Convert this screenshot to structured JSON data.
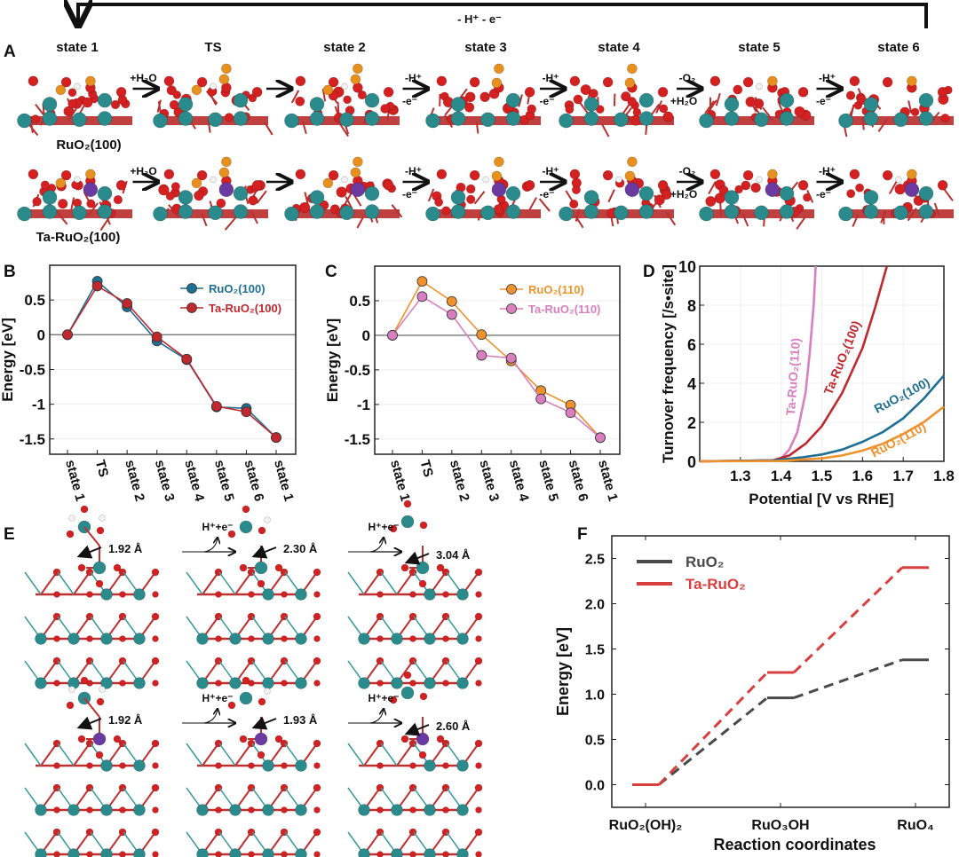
{
  "panel_labels": {
    "a": "A",
    "b": "B",
    "c": "C",
    "d": "D",
    "e": "E",
    "f": "F"
  },
  "panel_a": {
    "cycle_label": "- H⁺ - e⁻",
    "states": [
      "state 1",
      "TS",
      "state 2",
      "state 3",
      "state 4",
      "state 5",
      "state 6"
    ],
    "row_labels": [
      "RuO₂(100)",
      "Ta-RuO₂(100)"
    ],
    "steps": [
      {
        "top": "+H₂O",
        "bottom": ""
      },
      {
        "top": "",
        "bottom": ""
      },
      {
        "top": "-H⁺",
        "bottom": "-e⁻"
      },
      {
        "top": "-H⁺",
        "bottom": "-e⁻"
      },
      {
        "top": "-O₂",
        "bottom": "+H₂O"
      },
      {
        "top": "-H⁺",
        "bottom": "-e⁻"
      }
    ]
  },
  "panel_e": {
    "step_label": "H⁺+e⁻",
    "distances": [
      [
        "1.92 Å",
        "2.30 Å",
        "3.04 Å"
      ],
      [
        "1.92 Å",
        "1.93 Å",
        "2.60 Å"
      ]
    ]
  },
  "colors": {
    "ru": "#2a8a8c",
    "o": "#d42020",
    "h": "#f2f2f2",
    "adsorbate": "#e8901e",
    "ta": "#6a3aa0"
  },
  "chart_data": [
    {
      "type": "line",
      "panel": "B",
      "categories": [
        "state 1",
        "TS",
        "state 2",
        "state 3",
        "state 4",
        "state 5",
        "state 6",
        "state 1"
      ],
      "ylabel": "Energy [eV]",
      "ylim": [
        -1.72,
        1.0
      ],
      "yticks": [
        -1.5,
        -1,
        -0.5,
        0,
        0.5
      ],
      "ytick_labels": [
        "-1.5",
        "-1",
        "-0.5",
        "0",
        "0.5"
      ],
      "legend": "top-right",
      "series": [
        {
          "name": "RuO₂(100)",
          "color": "#1f6e94",
          "values": [
            0,
            0.77,
            0.4,
            -0.09,
            -0.36,
            -1.04,
            -1.06,
            -1.48
          ]
        },
        {
          "name": "Ta-RuO₂(100)",
          "color": "#c0282e",
          "values": [
            0,
            0.7,
            0.45,
            -0.03,
            -0.35,
            -1.03,
            -1.11,
            -1.48
          ]
        }
      ]
    },
    {
      "type": "line",
      "panel": "C",
      "categories": [
        "state 1",
        "TS",
        "state 2",
        "state 3",
        "state 4",
        "state 5",
        "state 6",
        "state 1"
      ],
      "ylabel": "Energy [eV]",
      "ylim": [
        -1.72,
        1.0
      ],
      "yticks": [
        -1.5,
        -1,
        -0.5,
        0,
        0.5
      ],
      "ytick_labels": [
        "-1.5",
        "-1",
        "-0.5",
        "0",
        "0.5"
      ],
      "legend": "top-right",
      "series": [
        {
          "name": "RuO₂(110)",
          "color": "#f0922b",
          "values": [
            0,
            0.78,
            0.49,
            0.01,
            -0.37,
            -0.8,
            -1.01,
            -1.48
          ]
        },
        {
          "name": "Ta-RuO₂(110)",
          "color": "#d97fc0",
          "values": [
            0,
            0.56,
            0.3,
            -0.29,
            -0.33,
            -0.92,
            -1.12,
            -1.48
          ]
        }
      ]
    },
    {
      "type": "line",
      "panel": "D",
      "xlabel": "Potential [V vs RHE]",
      "ylabel": "Turnover frequency [/s•site]",
      "xlim": [
        1.2,
        1.8
      ],
      "ylim": [
        0,
        10
      ],
      "xticks": [
        1.3,
        1.4,
        1.5,
        1.6,
        1.7,
        1.8
      ],
      "xtick_labels": [
        "1.3",
        "1.4",
        "1.5",
        "1.6",
        "1.7",
        "1.8"
      ],
      "yticks": [
        0,
        2,
        4,
        6,
        8,
        10
      ],
      "ytick_labels": [
        "0",
        "2",
        "4",
        "6",
        "8",
        "10"
      ],
      "legend": "inline labels",
      "series": [
        {
          "name": "Ta-RuO₂(110)",
          "color": "#d97fc0",
          "points": [
            [
              1.2,
              0
            ],
            [
              1.38,
              0.05
            ],
            [
              1.4,
              0.15
            ],
            [
              1.42,
              0.6
            ],
            [
              1.44,
              1.5
            ],
            [
              1.46,
              3.5
            ],
            [
              1.47,
              5.5
            ],
            [
              1.48,
              8.0
            ],
            [
              1.485,
              10
            ]
          ]
        },
        {
          "name": "Ta-RuO₂(100)",
          "color": "#c0282e",
          "points": [
            [
              1.2,
              0
            ],
            [
              1.38,
              0.05
            ],
            [
              1.42,
              0.3
            ],
            [
              1.46,
              0.9
            ],
            [
              1.5,
              1.8
            ],
            [
              1.55,
              3.5
            ],
            [
              1.6,
              5.8
            ],
            [
              1.63,
              7.8
            ],
            [
              1.66,
              10
            ]
          ]
        },
        {
          "name": "RuO₂(100)",
          "color": "#1f6e94",
          "points": [
            [
              1.2,
              0
            ],
            [
              1.38,
              0.05
            ],
            [
              1.45,
              0.2
            ],
            [
              1.5,
              0.35
            ],
            [
              1.55,
              0.6
            ],
            [
              1.6,
              1.0
            ],
            [
              1.65,
              1.5
            ],
            [
              1.7,
              2.2
            ],
            [
              1.75,
              3.2
            ],
            [
              1.8,
              4.4
            ]
          ]
        },
        {
          "name": "RuO₂(110)",
          "color": "#f0922b",
          "points": [
            [
              1.2,
              0
            ],
            [
              1.4,
              0.02
            ],
            [
              1.5,
              0.15
            ],
            [
              1.55,
              0.3
            ],
            [
              1.6,
              0.55
            ],
            [
              1.65,
              0.9
            ],
            [
              1.7,
              1.4
            ],
            [
              1.75,
              2.0
            ],
            [
              1.8,
              2.8
            ]
          ]
        }
      ]
    },
    {
      "type": "line",
      "panel": "F",
      "categories": [
        "RuO₂(OH)₂",
        "RuO₃OH",
        "RuO₄"
      ],
      "xlabel": "Reaction coordinates",
      "ylabel": "Energy [eV]",
      "ylim": [
        -0.25,
        2.75
      ],
      "yticks": [
        0,
        0.5,
        1.0,
        1.5,
        2.0,
        2.5
      ],
      "ytick_labels": [
        "0.0",
        "0.5",
        "1.0",
        "1.5",
        "2.0",
        "2.5"
      ],
      "legend": "top-left",
      "series": [
        {
          "name": "RuO₂",
          "color": "#4a4a4a",
          "values": [
            0,
            0.96,
            1.38
          ]
        },
        {
          "name": "Ta-RuO₂",
          "color": "#d84040",
          "values": [
            0,
            1.24,
            2.4
          ]
        }
      ]
    }
  ]
}
